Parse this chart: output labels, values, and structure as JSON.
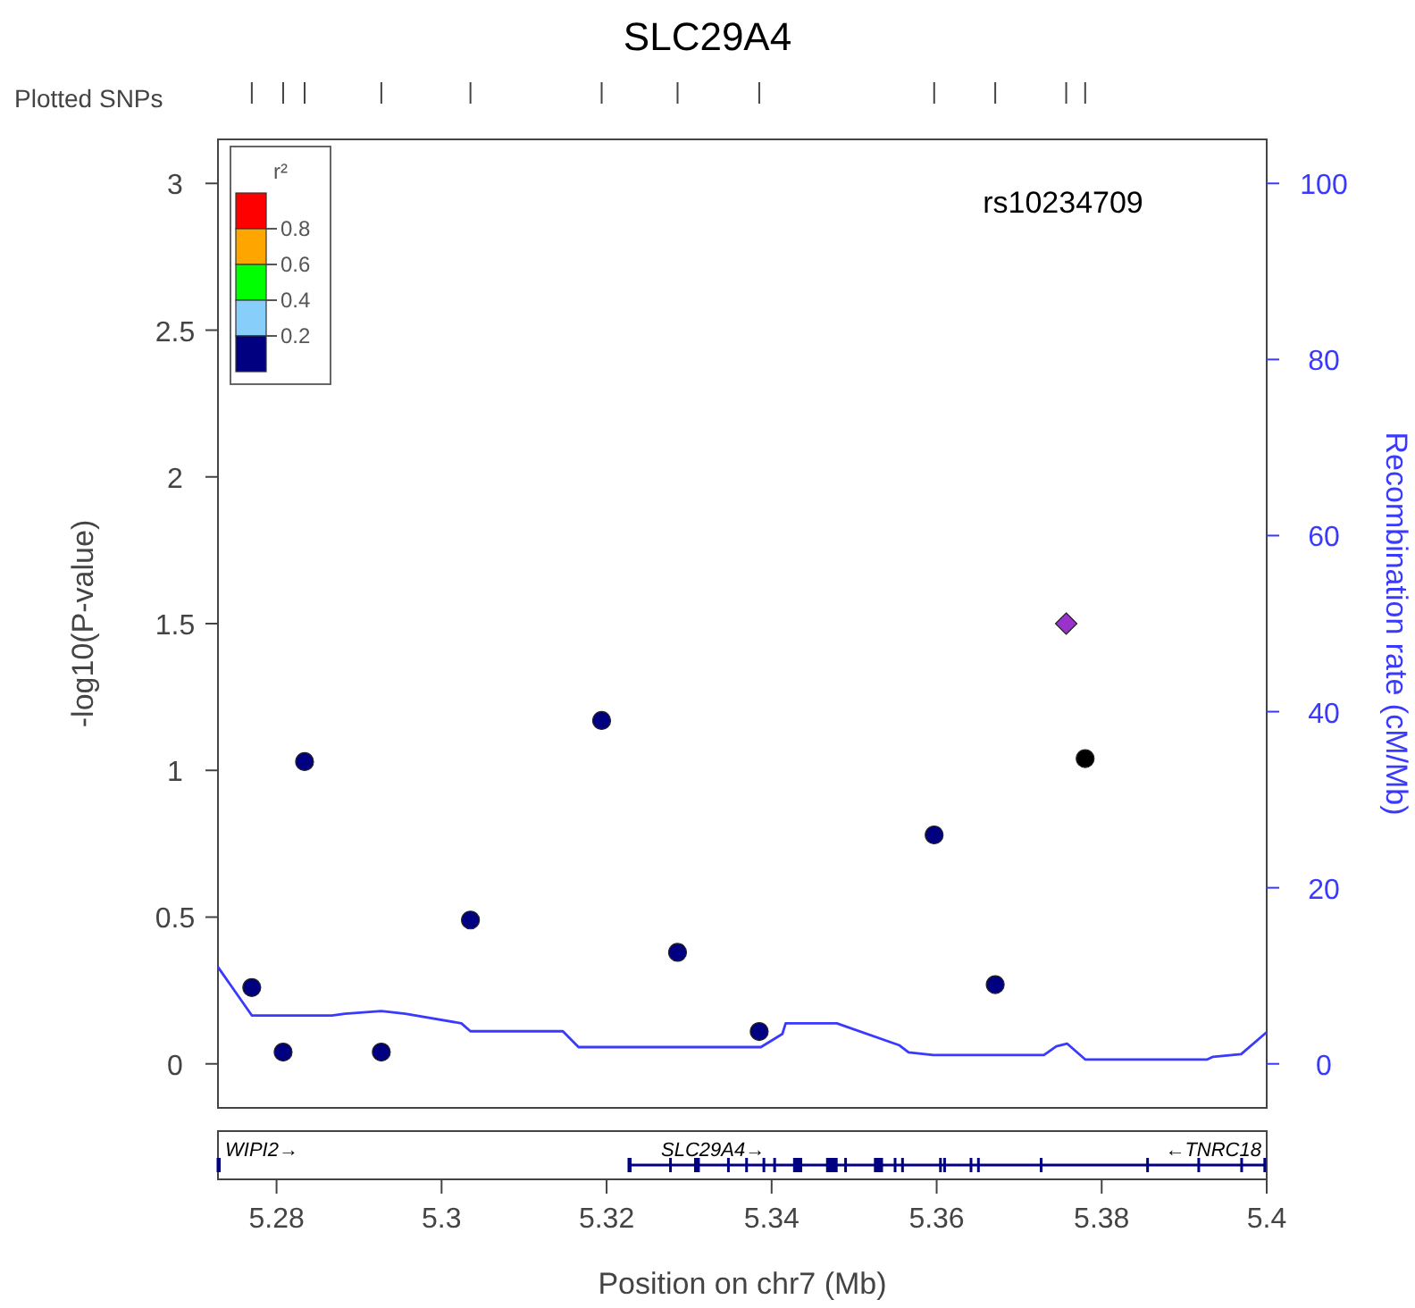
{
  "chart_data": {
    "type": "scatter",
    "title": "SLC29A4",
    "xlabel": "Position on chr7 (Mb)",
    "ylabel": "-log10(P-value)",
    "y2label": "Recombination rate (cM/Mb)",
    "clabel": "r²",
    "annotations": [
      "rs10234709",
      "Plotted SNPs",
      "WIPI2→",
      "SLC29A4→",
      "←TNRC18",
      "0.8",
      "0.6",
      "0.4",
      "0.2"
    ],
    "xlim": [
      5.2729,
      5.4
    ],
    "xticks": [
      5.28,
      {
        "value": 5.3,
        "label": "5.3"
      },
      5.32,
      5.34,
      5.36,
      5.38,
      {
        "value": 5.4,
        "label": "5.4"
      }
    ],
    "ylim": [
      -0.15,
      3.15
    ],
    "yticks": [
      0,
      0.5,
      1,
      1.5,
      2,
      2.5,
      3
    ],
    "y2lim": [
      -5,
      105
    ],
    "y2ticks": [
      0,
      20,
      40,
      60,
      80,
      100
    ],
    "grid": false,
    "series": [
      {
        "color": "#000080",
        "marker": "circle",
        "x": [
          5.277,
          5.2808,
          5.2834,
          5.2927,
          5.3035,
          5.3194,
          5.3286,
          5.3385,
          5.3597,
          5.3671
        ],
        "values": [
          0.26,
          0.04,
          1.03,
          0.04,
          0.49,
          1.17,
          0.38,
          0.11,
          0.78,
          0.27
        ]
      },
      {
        "color": "#9932cc",
        "marker": "diamond",
        "x": [
          5.3757
        ],
        "values": [
          1.5
        ]
      },
      {
        "color": "#000000",
        "marker": "circle",
        "x": [
          5.378
        ],
        "values": [
          1.04
        ]
      },
      {
        "type": "line",
        "axis": "y2",
        "color": "#3a3aff",
        "line_style": "solid",
        "x": [
          5.2729,
          5.277,
          5.2867,
          5.2883,
          5.2927,
          5.2956,
          5.3024,
          5.3035,
          5.3147,
          5.3166,
          5.3387,
          5.3413,
          5.3417,
          5.3479,
          5.3555,
          5.3566,
          5.3596,
          5.373,
          5.3745,
          5.3758,
          5.378,
          5.3928,
          5.3935,
          5.3969,
          5.4
        ],
        "values": [
          11,
          5.5,
          5.5,
          5.7,
          6,
          5.7,
          4.6,
          3.7,
          3.7,
          1.9,
          1.9,
          3.4,
          4.6,
          4.6,
          2.1,
          1.3,
          1,
          1,
          2,
          2.3,
          0.5,
          0.5,
          0.8,
          1.1,
          3.6
        ]
      }
    ]
  }
}
